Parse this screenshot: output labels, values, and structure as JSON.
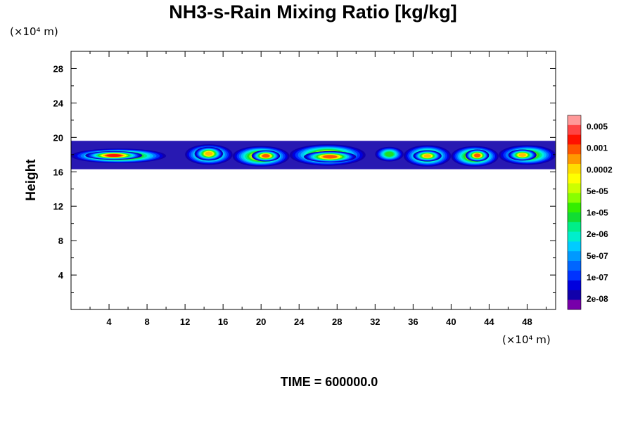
{
  "chart_data": {
    "type": "heatmap",
    "title": "NH3-s-Rain Mixing Ratio [kg/kg]",
    "xlabel": "",
    "ylabel": "Height",
    "x_unit_label": "(×10⁴ m)",
    "y_unit_label": "(×10⁴ m)",
    "xlim": [
      0,
      51
    ],
    "ylim": [
      0,
      30
    ],
    "x_ticks": [
      4,
      8,
      12,
      16,
      20,
      24,
      28,
      32,
      36,
      40,
      44,
      48
    ],
    "y_ticks": [
      4,
      8,
      12,
      16,
      20,
      24,
      28
    ],
    "footer": "TIME = 600000.0",
    "colorbar": {
      "labels": [
        "0.005",
        "0.001",
        "0.0002",
        "5e-05",
        "1e-05",
        "2e-06",
        "5e-07",
        "1e-07",
        "2e-08"
      ],
      "levels_colors": [
        "#ff9999",
        "#ff4444",
        "#ff1100",
        "#ff5500",
        "#ff9900",
        "#ffdd00",
        "#ffff00",
        "#ccff00",
        "#88ff00",
        "#33ee00",
        "#11dd33",
        "#00ee88",
        "#00eecc",
        "#00ccff",
        "#0099ff",
        "#0066ff",
        "#0033ff",
        "#0000dd",
        "#1100aa",
        "#7700aa"
      ]
    },
    "layer": {
      "height_range": [
        16,
        20
      ],
      "description_clusters": [
        {
          "x": [
            0,
            10
          ],
          "core_height": [
            17,
            18.5
          ],
          "peak_level": "0.0002"
        },
        {
          "x": [
            12,
            17
          ],
          "core_height": [
            17,
            19
          ],
          "peak_level": "5e-05"
        },
        {
          "x": [
            17,
            23
          ],
          "core_height": [
            17,
            18.5
          ],
          "peak_level": "0.0002"
        },
        {
          "x": [
            23,
            31
          ],
          "core_height": [
            17,
            18.5
          ],
          "peak_level": "0.0002"
        },
        {
          "x": [
            32,
            35
          ],
          "core_height": [
            17.5,
            18.5
          ],
          "peak_level": "2e-06"
        },
        {
          "x": [
            35,
            40
          ],
          "core_height": [
            17,
            18.5
          ],
          "peak_level": "1e-05"
        },
        {
          "x": [
            40,
            45
          ],
          "core_height": [
            17,
            18.5
          ],
          "peak_level": "0.0002"
        },
        {
          "x": [
            45,
            51
          ],
          "core_height": [
            17,
            18.5
          ],
          "peak_level": "5e-05"
        }
      ]
    }
  }
}
